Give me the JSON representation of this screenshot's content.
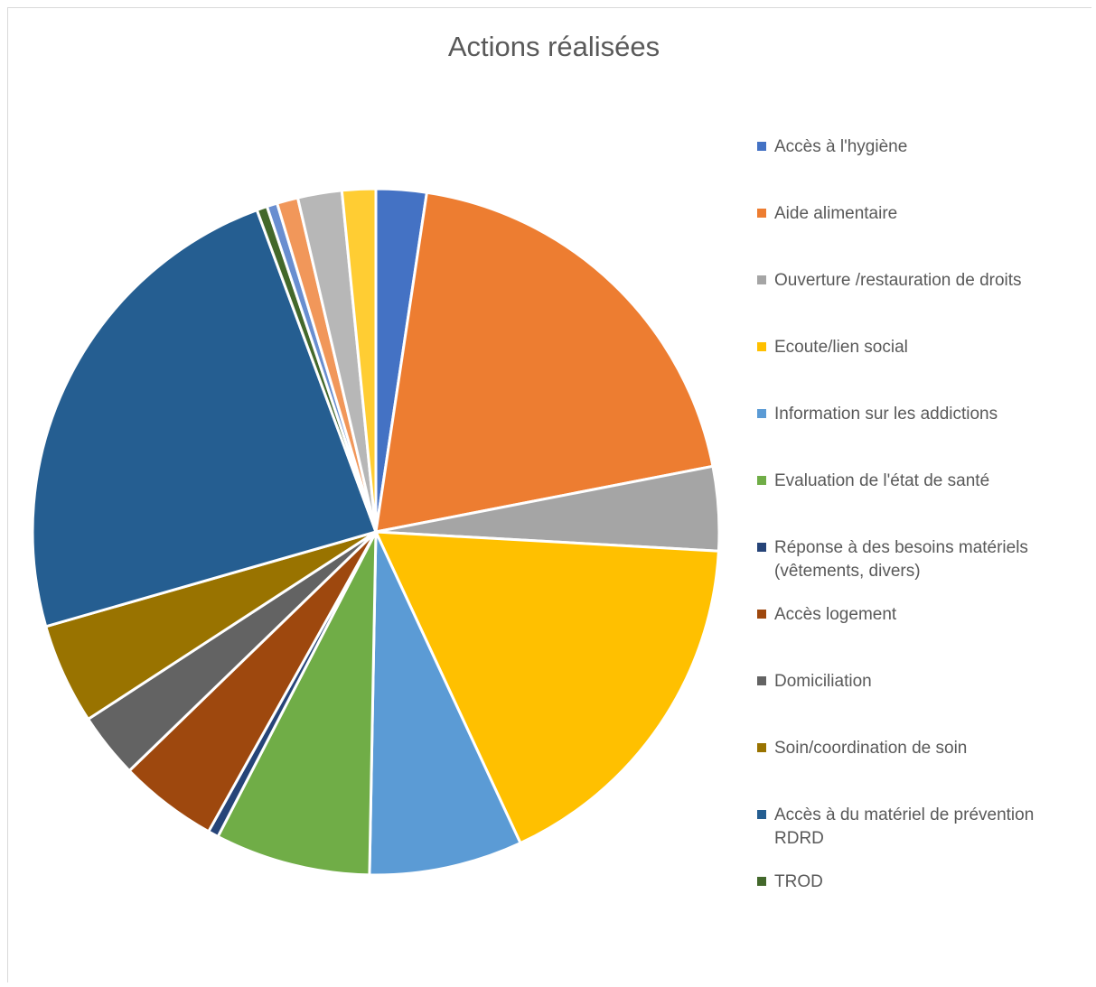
{
  "chart_data": {
    "type": "pie",
    "title": "Actions réalisées",
    "slices": [
      {
        "label": "Accès à l'hygiène",
        "value": 2.4,
        "color": "#4472C4"
      },
      {
        "label": "Aide alimentaire",
        "value": 19.8,
        "color": "#ED7D31"
      },
      {
        "label": "Ouverture /restauration de droits",
        "value": 4.0,
        "color": "#A5A5A5"
      },
      {
        "label": "Ecoute/lien social",
        "value": 17.4,
        "color": "#FFC000"
      },
      {
        "label": "Information sur les addictions",
        "value": 7.3,
        "color": "#5B9BD5"
      },
      {
        "label": "Evaluation de l'état de santé",
        "value": 7.4,
        "color": "#70AD47"
      },
      {
        "label": "Réponse à des besoins matériels (vêtements, divers)",
        "value": 0.5,
        "color": "#264478"
      },
      {
        "label": "Accès logement",
        "value": 4.7,
        "color": "#9E480E"
      },
      {
        "label": "Domiciliation",
        "value": 3.1,
        "color": "#636363"
      },
      {
        "label": "Soin/coordination de soin",
        "value": 4.8,
        "color": "#997300"
      },
      {
        "label": "Accès à du matériel de prévention RDRD",
        "value": 24.1,
        "color": "#255E91"
      },
      {
        "label": "TROD",
        "value": 0.5,
        "color": "#43682B"
      },
      {
        "label": "",
        "value": 0.5,
        "color": "#698ED0"
      },
      {
        "label": "",
        "value": 1.0,
        "color": "#F1975A"
      },
      {
        "label": "",
        "value": 2.1,
        "color": "#B7B7B7"
      },
      {
        "label": "",
        "value": 1.6,
        "color": "#FFCD33"
      }
    ],
    "legend": "right"
  }
}
